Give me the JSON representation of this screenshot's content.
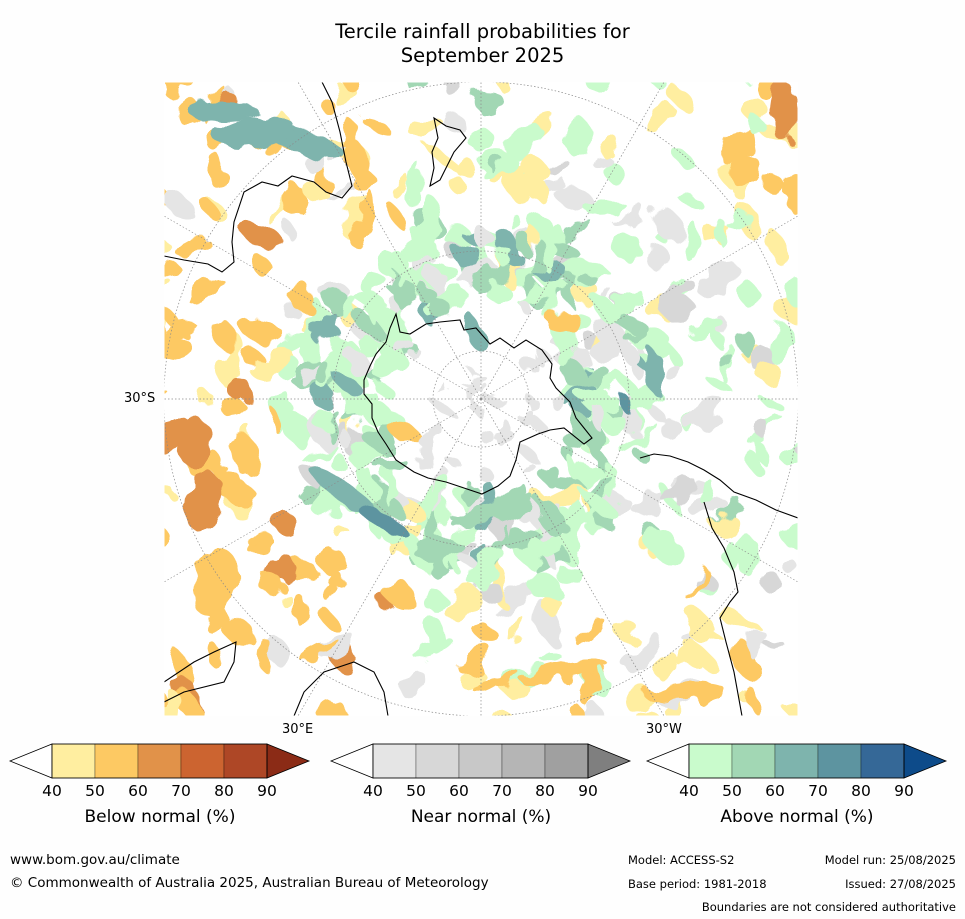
{
  "title_line1": "Tercile rainfall probabilities for",
  "title_line2": "September 2025",
  "map": {
    "projection": "south-polar-stereographic",
    "labels": {
      "lat": "30°S",
      "lon_east": "30°E",
      "lon_west": "30°W"
    },
    "colors": {
      "land_outline": "#000000",
      "below": [
        "#ffeea0",
        "#fdc963",
        "#e19249",
        "#cc6430",
        "#ae4726",
        "#8b2b16"
      ],
      "near": [
        "#e5e5e5",
        "#d7d7d7",
        "#c8c8c8",
        "#b5b5b5",
        "#a0a0a0",
        "#7f7f7f"
      ],
      "above": [
        "#c9fbcc",
        "#a2d7b4",
        "#7eb4ad",
        "#5d94a0",
        "#356897",
        "#0d4b8a"
      ]
    }
  },
  "colorbars": [
    {
      "title": "Below normal (%)",
      "ticks": [
        "40",
        "50",
        "60",
        "70",
        "80",
        "90"
      ],
      "colors": [
        "#ffeea0",
        "#fdc963",
        "#e19249",
        "#cc6430",
        "#ae4726",
        "#8b2b16"
      ]
    },
    {
      "title": "Near normal (%)",
      "ticks": [
        "40",
        "50",
        "60",
        "70",
        "80",
        "90"
      ],
      "colors": [
        "#e5e5e5",
        "#d7d7d7",
        "#c8c8c8",
        "#b5b5b5",
        "#a0a0a0",
        "#7f7f7f"
      ]
    },
    {
      "title": "Above normal (%)",
      "ticks": [
        "40",
        "50",
        "60",
        "70",
        "80",
        "90"
      ],
      "colors": [
        "#c9fbcc",
        "#a2d7b4",
        "#7eb4ad",
        "#5d94a0",
        "#356897",
        "#0d4b8a"
      ]
    }
  ],
  "footer": {
    "url": "www.bom.gov.au/climate",
    "copyright": "© Commonwealth of Australia 2025, Australian Bureau of Meteorology",
    "model": "Model: ACCESS-S2",
    "model_run": "Model run: 25/08/2025",
    "base_period": "Base period: 1981-2018",
    "issued": "Issued: 27/08/2025",
    "disclaimer": "Boundaries are not considered authoritative"
  }
}
